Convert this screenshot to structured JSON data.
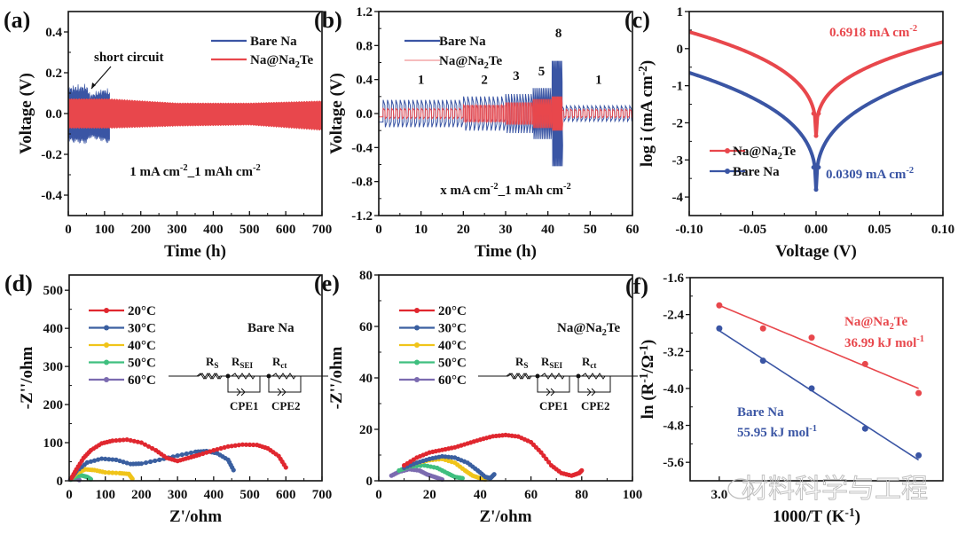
{
  "colors": {
    "bare": "#3a55a4",
    "coated": "#e8474c",
    "t20": "#e0272f",
    "t30": "#3a5fa0",
    "t40": "#f0c419",
    "t50": "#3fbf7f",
    "t60": "#7b6bb0",
    "axis": "#111111"
  },
  "watermark": "材料科学与工程",
  "chart_data": [
    {
      "id": "a",
      "panel_label": "(a)",
      "type": "line",
      "title": "",
      "xlabel": "Time (h)",
      "ylabel": "Voltage (V)",
      "xlim": [
        0,
        700
      ],
      "ylim": [
        -0.5,
        0.5
      ],
      "xticks": [
        0,
        100,
        200,
        300,
        400,
        500,
        600,
        700
      ],
      "yticks": [
        -0.4,
        -0.2,
        0.0,
        0.2,
        0.4
      ],
      "ytick_labels": [
        "-0.4",
        "-0.2",
        "0.0",
        "0.2",
        "0.4"
      ],
      "legend": [
        "Bare Na",
        "Na@Na2Te"
      ],
      "legend_position": "top-right",
      "annotations": [
        {
          "text": "short circuit",
          "x": 70,
          "y": 0.08
        },
        {
          "text": "1 mA cm-2_1 mAh cm-2"
        }
      ],
      "series": [
        {
          "name": "Bare Na",
          "color_key": "bare",
          "envelope": [
            [
              0,
              0.14,
              -0.14
            ],
            [
              50,
              0.15,
              -0.15
            ],
            [
              60,
              0.1,
              -0.12
            ],
            [
              100,
              0.13,
              -0.14
            ],
            [
              115,
              0.12,
              -0.15
            ]
          ]
        },
        {
          "name": "Na@Na2Te",
          "color_key": "coated",
          "envelope": [
            [
              0,
              0.07,
              -0.07
            ],
            [
              115,
              0.07,
              -0.07
            ],
            [
              300,
              0.05,
              -0.06
            ],
            [
              500,
              0.05,
              -0.055
            ],
            [
              700,
              0.06,
              -0.08
            ]
          ]
        }
      ]
    },
    {
      "id": "b",
      "panel_label": "(b)",
      "type": "line",
      "xlabel": "Time (h)",
      "ylabel": "Voltage (V)",
      "xlim": [
        0,
        60
      ],
      "ylim": [
        -1.2,
        1.2
      ],
      "xticks": [
        0,
        10,
        20,
        30,
        40,
        50,
        60
      ],
      "yticks": [
        -1.2,
        -0.8,
        -0.4,
        0.0,
        0.4,
        0.8,
        1.2
      ],
      "ytick_labels": [
        "-1.2",
        "-0.8",
        "-0.4",
        "0.0",
        "0.4",
        "0.8",
        "1.2"
      ],
      "legend": [
        "Bare Na",
        "Na@Na2Te"
      ],
      "legend_position": "top-left",
      "annotations": [
        {
          "text": "x mA cm-2_1 mAh cm-2"
        }
      ],
      "rate_labels": [
        {
          "text": "1",
          "x": 10,
          "y": 0.4
        },
        {
          "text": "2",
          "x": 25,
          "y": 0.4
        },
        {
          "text": "3",
          "x": 32.5,
          "y": 0.45
        },
        {
          "text": "5",
          "x": 38.5,
          "y": 0.5
        },
        {
          "text": "8",
          "x": 42.5,
          "y": 0.95
        },
        {
          "text": "1",
          "x": 52,
          "y": 0.4
        }
      ],
      "segments": [
        {
          "rate": 1,
          "t": [
            1,
            20
          ],
          "bare": 0.16,
          "coated": 0.06
        },
        {
          "rate": 2,
          "t": [
            20,
            30
          ],
          "bare": 0.2,
          "coated": 0.1
        },
        {
          "rate": 3,
          "t": [
            30,
            36.5
          ],
          "bare": 0.23,
          "coated": 0.13
        },
        {
          "rate": 5,
          "t": [
            36.5,
            41
          ],
          "bare": 0.3,
          "coated": 0.17
        },
        {
          "rate": 8,
          "t": [
            41,
            43.3
          ],
          "bare": 0.62,
          "coated": 0.2
        },
        {
          "rate": 1,
          "t": [
            43.3,
            60
          ],
          "bare": 0.09,
          "coated": 0.05
        }
      ]
    },
    {
      "id": "c",
      "panel_label": "(c)",
      "type": "line",
      "xlabel": "Voltage (V)",
      "ylabel": "log i (mA cm-2)",
      "xlim": [
        -0.1,
        0.1
      ],
      "ylim": [
        -4.5,
        1
      ],
      "xticks": [
        -0.1,
        -0.05,
        0.0,
        0.05,
        0.1
      ],
      "xtick_labels": [
        "-0.10",
        "-0.05",
        "0.00",
        "0.05",
        "0.10"
      ],
      "yticks": [
        -4,
        -3,
        -2,
        -1,
        0,
        1
      ],
      "ytick_labels": [
        "-4",
        "-3",
        "-2",
        "-1",
        "0",
        "1"
      ],
      "legend": [
        "Na@Na2Te",
        "Bare Na"
      ],
      "legend_position": "bottom-left",
      "annotations": [
        {
          "text": "0.6918 mA cm-2",
          "color_key": "coated"
        },
        {
          "text": "0.0309  mA cm-2",
          "color_key": "bare"
        }
      ],
      "series": [
        {
          "name": "Na@Na2Te",
          "color_key": "coated",
          "left_end": 0.45,
          "right_end": 0.18,
          "min": -2.35
        },
        {
          "name": "Bare Na",
          "color_key": "bare",
          "left_end": -0.65,
          "right_end": -0.65,
          "min": -3.8
        }
      ]
    },
    {
      "id": "d",
      "panel_label": "(d)",
      "type": "scatter",
      "xlabel": "Z'/ohm",
      "ylabel": "-Z''/ohm",
      "xlim": [
        0,
        700
      ],
      "ylim": [
        0,
        540
      ],
      "xticks": [
        0,
        100,
        200,
        300,
        400,
        500,
        600,
        700
      ],
      "yticks": [
        0,
        100,
        200,
        300,
        400,
        500
      ],
      "legend": [
        "20°C",
        "30°C",
        "40°C",
        "50°C",
        "60°C"
      ],
      "legend_position": "top-left",
      "sample_label": "Bare Na",
      "series": [
        {
          "name": "20°C",
          "color_key": "t20",
          "points": [
            [
              5,
              5
            ],
            [
              20,
              30
            ],
            [
              40,
              60
            ],
            [
              60,
              80
            ],
            [
              90,
              98
            ],
            [
              120,
              105
            ],
            [
              160,
              108
            ],
            [
              200,
              100
            ],
            [
              240,
              80
            ],
            [
              270,
              60
            ],
            [
              300,
              52
            ],
            [
              330,
              60
            ],
            [
              360,
              68
            ],
            [
              400,
              80
            ],
            [
              440,
              90
            ],
            [
              480,
              95
            ],
            [
              520,
              94
            ],
            [
              550,
              85
            ],
            [
              580,
              65
            ],
            [
              600,
              35
            ]
          ]
        },
        {
          "name": "30°C",
          "color_key": "t30",
          "points": [
            [
              5,
              5
            ],
            [
              20,
              25
            ],
            [
              50,
              48
            ],
            [
              90,
              58
            ],
            [
              130,
              55
            ],
            [
              170,
              44
            ],
            [
              200,
              45
            ],
            [
              250,
              55
            ],
            [
              300,
              66
            ],
            [
              350,
              76
            ],
            [
              380,
              78
            ],
            [
              410,
              72
            ],
            [
              440,
              55
            ],
            [
              455,
              28
            ]
          ]
        },
        {
          "name": "40°C",
          "color_key": "t40",
          "points": [
            [
              5,
              5
            ],
            [
              20,
              20
            ],
            [
              45,
              30
            ],
            [
              70,
              28
            ],
            [
              100,
              22
            ],
            [
              140,
              20
            ],
            [
              165,
              18
            ],
            [
              175,
              5
            ]
          ]
        },
        {
          "name": "50°C",
          "color_key": "t50",
          "points": [
            [
              5,
              3
            ],
            [
              20,
              12
            ],
            [
              35,
              14
            ],
            [
              50,
              10
            ],
            [
              60,
              4
            ]
          ]
        },
        {
          "name": "60°C",
          "color_key": "t60",
          "points": [
            [
              3,
              3
            ],
            [
              10,
              7
            ],
            [
              20,
              6
            ],
            [
              28,
              2
            ]
          ]
        }
      ],
      "circuit": {
        "labels": [
          "RS",
          "RSEI",
          "Rct"
        ],
        "cpe": [
          "CPE1",
          "CPE2"
        ]
      }
    },
    {
      "id": "e",
      "panel_label": "(e)",
      "type": "scatter",
      "xlabel": "Z'/ohm",
      "ylabel": "-Z''/ohm",
      "xlim": [
        0,
        100
      ],
      "ylim": [
        0,
        80
      ],
      "xticks": [
        0,
        20,
        40,
        60,
        80,
        100
      ],
      "yticks": [
        0,
        20,
        40,
        60,
        80
      ],
      "legend": [
        "20°C",
        "30°C",
        "40°C",
        "50°C",
        "60°C"
      ],
      "legend_position": "top-left",
      "sample_label": "Na@Na2Te",
      "series": [
        {
          "name": "20°C",
          "color_key": "t20",
          "points": [
            [
              10,
              6
            ],
            [
              15,
              9
            ],
            [
              20,
              11
            ],
            [
              25,
              12
            ],
            [
              30,
              13
            ],
            [
              35,
              14.5
            ],
            [
              40,
              16
            ],
            [
              45,
              17.3
            ],
            [
              50,
              17.8
            ],
            [
              55,
              17.2
            ],
            [
              60,
              15
            ],
            [
              64,
              11
            ],
            [
              68,
              6
            ],
            [
              72,
              3
            ],
            [
              76,
              2
            ],
            [
              79,
              3
            ],
            [
              80,
              4
            ]
          ]
        },
        {
          "name": "30°C",
          "color_key": "t30",
          "points": [
            [
              10,
              5
            ],
            [
              15,
              7
            ],
            [
              20,
              8.5
            ],
            [
              25,
              9.5
            ],
            [
              30,
              9
            ],
            [
              35,
              7
            ],
            [
              39,
              4
            ],
            [
              42,
              1.5
            ],
            [
              44,
              1
            ],
            [
              45.5,
              2.5
            ]
          ]
        },
        {
          "name": "40°C",
          "color_key": "t40",
          "points": [
            [
              10,
              5
            ],
            [
              15,
              7
            ],
            [
              20,
              8
            ],
            [
              25,
              8.5
            ],
            [
              30,
              7
            ],
            [
              34,
              4
            ],
            [
              37,
              2
            ],
            [
              40,
              1
            ],
            [
              42,
              0.5
            ]
          ]
        },
        {
          "name": "50°C",
          "color_key": "t50",
          "points": [
            [
              8,
              4
            ],
            [
              12,
              5.5
            ],
            [
              18,
              6
            ],
            [
              23,
              5
            ],
            [
              27,
              3
            ],
            [
              30,
              1.5
            ],
            [
              33,
              1
            ]
          ]
        },
        {
          "name": "60°C",
          "color_key": "t60",
          "points": [
            [
              5,
              2
            ],
            [
              8,
              3.5
            ],
            [
              12,
              4.5
            ],
            [
              16,
              4
            ],
            [
              19,
              2.5
            ],
            [
              22,
              1.5
            ],
            [
              25,
              0.5
            ]
          ]
        }
      ],
      "circuit": {
        "labels": [
          "RS",
          "RSEI",
          "Rct"
        ],
        "cpe": [
          "CPE1",
          "CPE2"
        ]
      }
    },
    {
      "id": "f",
      "panel_label": "(f)",
      "type": "scatter",
      "xlabel": "1000/T (K-1)",
      "ylabel": "ln (R-1/Ω-1)",
      "xlim": [
        2.94,
        3.46
      ],
      "ylim": [
        -6.0,
        -1.6
      ],
      "xticks": [
        3.0
      ],
      "xtick_labels": [
        "3.0"
      ],
      "yticks": [
        -5.6,
        -4.8,
        -4.0,
        -3.2,
        -2.4,
        -1.6
      ],
      "ytick_labels": [
        "-5.6",
        "-4.8",
        "-4.0",
        "-3.2",
        "-2.4",
        "-1.6"
      ],
      "series": [
        {
          "name": "Na@Na2Te",
          "color_key": "coated",
          "label": "Na@Na2Te",
          "ea": "36.99 kJ mol-1",
          "points": [
            [
              3.0,
              -2.2
            ],
            [
              3.09,
              -2.7
            ],
            [
              3.19,
              -2.9
            ],
            [
              3.3,
              -3.47
            ],
            [
              3.41,
              -4.1
            ]
          ],
          "fit": [
            [
              3.0,
              -2.2
            ],
            [
              3.41,
              -4.0
            ]
          ]
        },
        {
          "name": "Bare Na",
          "color_key": "bare",
          "label": "Bare Na",
          "ea": "55.95 kJ mol-1",
          "points": [
            [
              3.0,
              -2.7
            ],
            [
              3.09,
              -3.4
            ],
            [
              3.19,
              -4.0
            ],
            [
              3.3,
              -4.87
            ],
            [
              3.41,
              -5.45
            ]
          ],
          "fit": [
            [
              3.0,
              -2.75
            ],
            [
              3.41,
              -5.55
            ]
          ]
        }
      ]
    }
  ]
}
